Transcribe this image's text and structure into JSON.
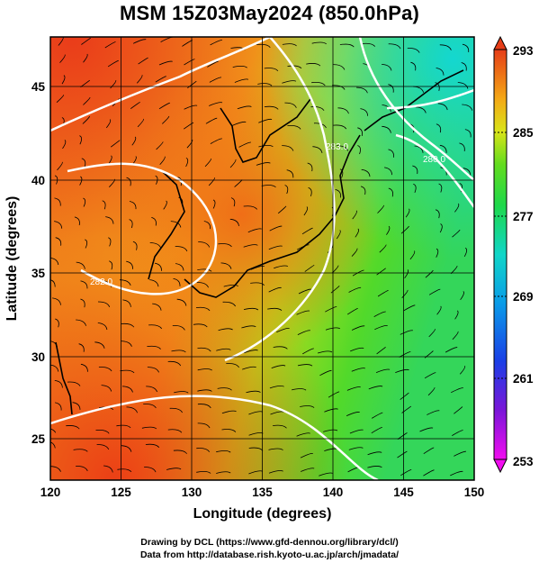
{
  "title": "MSM 15Z03May2024 (850.0hPa)",
  "xlabel": "Longitude (degrees)",
  "ylabel": "Latitude  (degrees)",
  "footer": {
    "line1": "Drawing by DCL (https://www.gfd-dennou.org/library/dcl/)",
    "line2": "Data from http://database.rish.kyoto-u.ac.jp/arch/jmadata/"
  },
  "map_data": {
    "type": "heatmap",
    "field": "temperature with streamlines and isotherms",
    "x_ticks": [
      "120",
      "125",
      "130",
      "135",
      "140",
      "145",
      "150"
    ],
    "y_ticks": [
      "25",
      "30",
      "35",
      "40",
      "45"
    ],
    "xlim": [
      120,
      150
    ],
    "ylim": [
      22.4,
      47.6
    ],
    "colorbar": {
      "ticks": [
        "293",
        "285",
        "277",
        "269",
        "261",
        "253"
      ],
      "range": [
        253,
        293
      ]
    },
    "contour_labels": [
      "283.0",
      "280.0",
      "282.0"
    ]
  }
}
